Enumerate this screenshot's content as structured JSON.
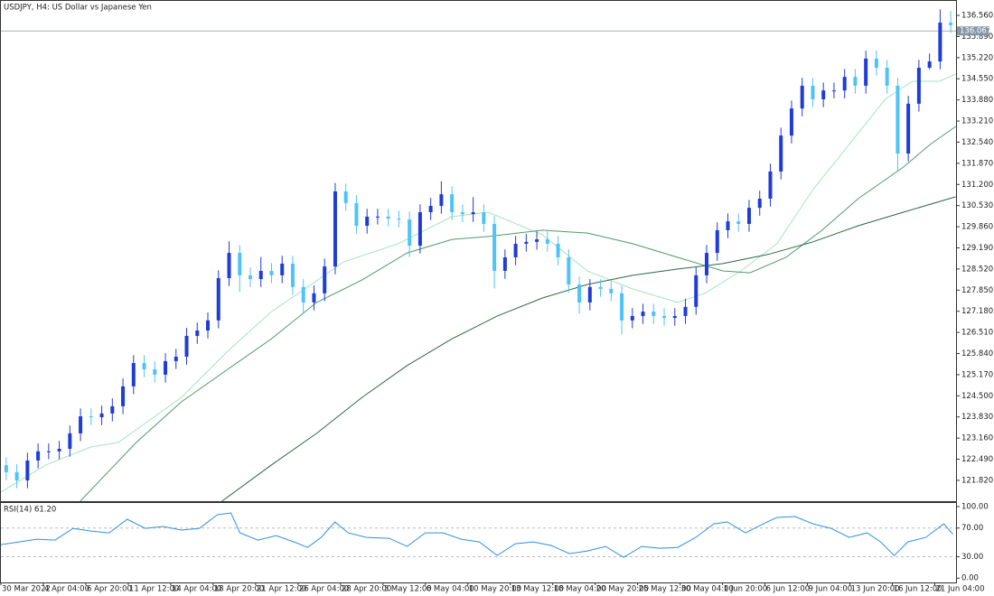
{
  "title": "USDJPY, H4:  US Dollar vs Japanese Yen",
  "chart_data": [
    {
      "type": "candlestick",
      "up_color": "#1f3cd6",
      "down_color": "#4fc3f7",
      "xlim": [
        0,
        360
      ],
      "ylim": [
        121.16,
        136.99
      ],
      "x": [
        2,
        6,
        10,
        14,
        18,
        22,
        26,
        30,
        34,
        38,
        42,
        46,
        50,
        54,
        58,
        62,
        66,
        70,
        74,
        78,
        82,
        86,
        90,
        94,
        98,
        102,
        106,
        110,
        114,
        118,
        122,
        126,
        130,
        134,
        138,
        142,
        146,
        150,
        154,
        158,
        162,
        166,
        170,
        174,
        178,
        182,
        186,
        190,
        194,
        198,
        202,
        206,
        210,
        214,
        218,
        222,
        226,
        230,
        234,
        238,
        242,
        246,
        250,
        254,
        258,
        262,
        266,
        270,
        274,
        278,
        282,
        286,
        290,
        294,
        298,
        302,
        306,
        310,
        314,
        318,
        322,
        326,
        330,
        334,
        338,
        342,
        346,
        350,
        354,
        358
      ],
      "open": [
        122.3,
        122.08,
        121.82,
        122.45,
        122.74,
        122.74,
        122.82,
        123.31,
        123.85,
        123.82,
        123.94,
        124.17,
        124.8,
        125.54,
        125.34,
        125.17,
        125.6,
        125.74,
        126.4,
        126.57,
        126.89,
        128.23,
        129.03,
        128.32,
        128.2,
        128.46,
        128.32,
        128.69,
        127.95,
        127.46,
        127.75,
        128.6,
        130.98,
        130.61,
        129.89,
        130.18,
        130.18,
        130.12,
        130.09,
        129.26,
        130.32,
        130.52,
        130.89,
        130.32,
        130.26,
        130.32,
        129.95,
        128.46,
        128.89,
        129.32,
        129.38,
        129.46,
        129.32,
        128.89,
        128.03,
        127.46,
        127.95,
        127.89,
        127.75,
        126.89,
        127.03,
        127.17,
        127.03,
        126.97,
        127.03,
        127.32,
        128.32,
        129.03,
        129.75,
        130.03,
        129.95,
        130.46,
        130.75,
        131.61,
        132.75,
        133.61,
        134.33,
        133.9,
        134.18,
        134.18,
        134.61,
        134.33,
        135.19,
        134.9,
        134.33,
        132.18,
        133.76,
        134.9,
        135.1,
        136.33
      ],
      "high": [
        122.55,
        122.33,
        122.7,
        122.99,
        122.99,
        123.07,
        123.56,
        124.1,
        124.1,
        124.19,
        124.42,
        125.05,
        125.79,
        125.79,
        125.59,
        125.85,
        125.99,
        126.65,
        126.82,
        127.14,
        128.48,
        129.4,
        129.28,
        128.57,
        128.9,
        128.71,
        128.94,
        128.94,
        128.2,
        128.0,
        128.85,
        131.25,
        131.23,
        130.86,
        130.43,
        130.43,
        130.43,
        130.37,
        130.34,
        130.57,
        130.77,
        131.3,
        131.14,
        130.57,
        130.8,
        130.57,
        130.2,
        129.14,
        129.57,
        129.63,
        129.71,
        129.71,
        129.57,
        129.14,
        128.28,
        128.2,
        128.2,
        128.14,
        128.0,
        127.28,
        127.42,
        127.42,
        127.28,
        127.28,
        127.57,
        128.57,
        129.28,
        130.0,
        130.28,
        130.28,
        130.71,
        131.0,
        131.86,
        133.0,
        133.86,
        134.58,
        134.58,
        134.43,
        134.43,
        134.86,
        134.86,
        135.44,
        135.44,
        135.15,
        134.58,
        134.01,
        135.15,
        135.35,
        136.75,
        136.7
      ],
      "low": [
        121.83,
        121.57,
        121.57,
        122.2,
        122.49,
        122.49,
        122.57,
        123.06,
        123.57,
        123.57,
        123.69,
        123.92,
        124.55,
        125.09,
        124.92,
        124.92,
        125.35,
        125.49,
        126.15,
        126.32,
        126.64,
        127.98,
        127.8,
        127.95,
        127.95,
        128.07,
        128.07,
        127.7,
        127.1,
        127.21,
        127.5,
        128.35,
        130.36,
        129.64,
        129.64,
        129.93,
        129.87,
        129.84,
        128.9,
        129.01,
        130.07,
        130.27,
        130.07,
        130.01,
        130.01,
        129.7,
        127.9,
        128.21,
        128.64,
        129.07,
        129.13,
        129.07,
        128.64,
        127.78,
        127.1,
        127.21,
        127.64,
        127.5,
        126.45,
        126.64,
        126.78,
        126.78,
        126.72,
        126.72,
        126.78,
        127.07,
        128.07,
        128.78,
        129.5,
        129.7,
        129.7,
        130.21,
        130.5,
        131.36,
        132.5,
        133.36,
        133.65,
        133.65,
        133.93,
        133.93,
        134.08,
        134.08,
        134.65,
        134.08,
        131.6,
        131.93,
        133.51,
        134.85,
        134.85,
        136.0
      ],
      "close": [
        122.08,
        121.82,
        122.45,
        122.74,
        122.74,
        122.82,
        123.31,
        123.85,
        123.82,
        123.94,
        124.17,
        124.8,
        125.54,
        125.34,
        125.17,
        125.6,
        125.74,
        126.4,
        126.57,
        126.89,
        128.23,
        129.03,
        128.32,
        128.2,
        128.46,
        128.32,
        128.69,
        127.95,
        127.46,
        127.75,
        128.6,
        130.98,
        130.61,
        129.89,
        130.18,
        130.18,
        130.12,
        130.09,
        129.26,
        130.32,
        130.52,
        130.89,
        130.32,
        130.26,
        130.32,
        129.95,
        128.46,
        128.89,
        129.32,
        129.38,
        129.46,
        129.32,
        128.89,
        128.03,
        127.46,
        127.95,
        127.89,
        127.75,
        126.89,
        127.03,
        127.17,
        127.03,
        126.97,
        127.03,
        127.32,
        128.32,
        129.03,
        129.75,
        130.03,
        129.95,
        130.46,
        130.75,
        131.61,
        132.75,
        133.61,
        134.33,
        133.9,
        134.18,
        134.18,
        134.61,
        134.33,
        135.19,
        134.9,
        134.33,
        132.18,
        133.76,
        134.9,
        135.1,
        136.33,
        136.25
      ],
      "series": [
        {
          "color": "#a6e3c2",
          "x": [
            0,
            17,
            34,
            44.2,
            68,
            85,
            102,
            112.2,
            129.3,
            149.7,
            170,
            183.7,
            204,
            221,
            238,
            255,
            265.3,
            278.9,
            292.5,
            306.1,
            319.7,
            333.3,
            343.5,
            353.7,
            359.9
          ],
          "values": [
            121.45,
            122.31,
            122.88,
            123.02,
            124.45,
            125.88,
            127.17,
            127.75,
            128.75,
            129.32,
            130.18,
            130.32,
            129.61,
            128.46,
            127.89,
            127.46,
            127.75,
            128.46,
            129.32,
            131.04,
            132.47,
            133.9,
            134.47,
            134.47,
            134.7
          ]
        },
        {
          "color": "#4f9a68",
          "x": [
            29.9,
            51,
            68,
            85,
            102,
            119,
            136.1,
            153.1,
            170.1,
            183.7,
            204.1,
            221.1,
            238.1,
            255.1,
            272.1,
            282.3,
            295.9,
            309.5,
            323.1,
            340.1,
            350.3,
            359.9
          ],
          "values": [
            121.16,
            123.02,
            124.31,
            125.31,
            126.31,
            127.46,
            128.17,
            129.03,
            129.46,
            129.55,
            129.75,
            129.66,
            129.32,
            128.89,
            128.46,
            128.4,
            128.89,
            129.75,
            130.75,
            131.75,
            132.47,
            133.04
          ]
        },
        {
          "color": "#2d6843",
          "x": [
            83.3,
            102,
            119,
            136.1,
            153.1,
            170.1,
            187.1,
            204.1,
            221.1,
            238.1,
            255.1,
            272.1,
            289.1,
            306.1,
            323.1,
            340.1,
            359.9
          ],
          "values": [
            121.16,
            122.31,
            123.31,
            124.45,
            125.46,
            126.31,
            127.03,
            127.6,
            128.03,
            128.32,
            128.52,
            128.69,
            128.98,
            129.38,
            129.89,
            130.32,
            130.81
          ]
        }
      ],
      "current_price": {
        "value": 136.067,
        "label": "136.067"
      },
      "yticks": [
        {
          "value": 136.56,
          "label": "136.560"
        },
        {
          "value": 135.89,
          "label": "135.890"
        },
        {
          "value": 135.22,
          "label": "135.220"
        },
        {
          "value": 134.55,
          "label": "134.550"
        },
        {
          "value": 133.88,
          "label": "133.880"
        },
        {
          "value": 133.21,
          "label": "133.210"
        },
        {
          "value": 132.54,
          "label": "132.540"
        },
        {
          "value": 131.87,
          "label": "131.870"
        },
        {
          "value": 131.2,
          "label": "131.200"
        },
        {
          "value": 130.53,
          "label": "130.530"
        },
        {
          "value": 129.86,
          "label": "129.860"
        },
        {
          "value": 129.19,
          "label": "129.190"
        },
        {
          "value": 128.52,
          "label": "128.520"
        },
        {
          "value": 127.85,
          "label": "127.850"
        },
        {
          "value": 127.18,
          "label": "127.180"
        },
        {
          "value": 126.51,
          "label": "126.510"
        },
        {
          "value": 125.84,
          "label": "125.840"
        },
        {
          "value": 125.17,
          "label": "125.170"
        },
        {
          "value": 124.5,
          "label": "124.500"
        },
        {
          "value": 123.83,
          "label": "123.830"
        },
        {
          "value": 123.16,
          "label": "123.160"
        },
        {
          "value": 122.49,
          "label": "122.490"
        },
        {
          "value": 121.82,
          "label": "121.820"
        }
      ],
      "xticks": [
        {
          "value": 0,
          "label": "30 Mar 2022"
        },
        {
          "value": 16,
          "label": "4 Apr 04:00"
        },
        {
          "value": 32,
          "label": "6 Apr 20:00"
        },
        {
          "value": 48,
          "label": "11 Apr 12:00"
        },
        {
          "value": 64,
          "label": "14 Apr 04:00"
        },
        {
          "value": 80,
          "label": "18 Apr 20:00"
        },
        {
          "value": 96,
          "label": "21 Apr 12:00"
        },
        {
          "value": 112,
          "label": "26 Apr 04:00"
        },
        {
          "value": 128,
          "label": "28 Apr 20:00"
        },
        {
          "value": 144,
          "label": "3 May 12:00"
        },
        {
          "value": 160,
          "label": "6 May 04:00"
        },
        {
          "value": 176,
          "label": "10 May 20:00"
        },
        {
          "value": 192,
          "label": "13 May 12:00"
        },
        {
          "value": 208,
          "label": "18 May 04:00"
        },
        {
          "value": 224,
          "label": "20 May 20:00"
        },
        {
          "value": 240,
          "label": "25 May 12:00"
        },
        {
          "value": 256,
          "label": "30 May 04:00"
        },
        {
          "value": 272,
          "label": "1 Jun 20:00"
        },
        {
          "value": 288,
          "label": "6 Jun 12:00"
        },
        {
          "value": 304,
          "label": "9 Jun 04:00"
        },
        {
          "value": 320,
          "label": "13 Jun 20:00"
        },
        {
          "value": 336,
          "label": "16 Jun 12:00"
        },
        {
          "value": 352,
          "label": "21 Jun 04:00"
        }
      ]
    },
    {
      "type": "line",
      "label": "RSI(14) 61.20",
      "color": "#2f8fe0",
      "xlim": [
        0,
        360
      ],
      "ylim": [
        -6,
        105
      ],
      "levels": [
        70,
        30
      ],
      "x": [
        0,
        6.8,
        13.6,
        20.4,
        27.2,
        34,
        40.8,
        47.6,
        54.4,
        61.2,
        68,
        74.8,
        81.6,
        86.7,
        90.1,
        96.9,
        103.7,
        110.5,
        115.6,
        120.7,
        125.9,
        130.9,
        137.8,
        146.3,
        153.1,
        159.9,
        166.7,
        173.5,
        180.3,
        187.1,
        193.9,
        200.7,
        207.5,
        214.3,
        221.1,
        227.9,
        234.7,
        241.5,
        248.3,
        255.1,
        261.9,
        268.7,
        273.8,
        280.6,
        287.4,
        292.5,
        299.3,
        306.1,
        312.9,
        319.7,
        326.5,
        331.6,
        336.7,
        341.8,
        348.6,
        355.4,
        358.8
      ],
      "values": [
        46.8,
        50.6,
        54.4,
        53.2,
        69.6,
        65.8,
        63.3,
        82.3,
        69.6,
        72.2,
        67.1,
        69.6,
        88.6,
        91.1,
        63.3,
        53.2,
        59.5,
        50.6,
        43.0,
        57.0,
        78.5,
        63.3,
        57.0,
        55.7,
        44.3,
        63.3,
        63.3,
        54.4,
        50.6,
        31.6,
        48.1,
        50.6,
        45.6,
        34.2,
        38.0,
        44.3,
        29.1,
        44.3,
        41.8,
        43.0,
        57.0,
        75.9,
        78.5,
        63.3,
        75.9,
        84.8,
        86.1,
        75.9,
        69.6,
        57.0,
        63.3,
        50.6,
        31.6,
        50.6,
        57.0,
        75.9,
        61.2
      ],
      "yticks": [
        {
          "value": 100,
          "label": "100.00"
        },
        {
          "value": 70,
          "label": "70.00"
        },
        {
          "value": 30,
          "label": "30.00"
        },
        {
          "value": 0,
          "label": "0.00"
        }
      ]
    }
  ]
}
